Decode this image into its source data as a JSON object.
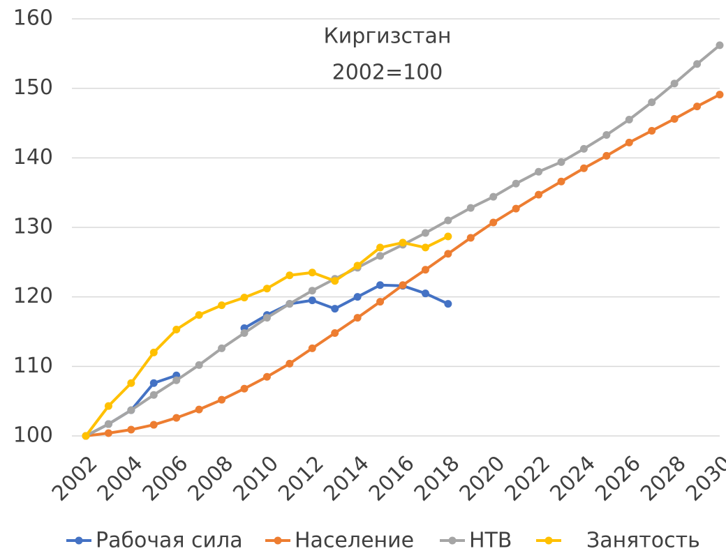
{
  "chart_data": {
    "type": "line",
    "title": "Киргизстан",
    "subtitle": "2002=100",
    "x": [
      2002,
      2003,
      2004,
      2005,
      2006,
      2007,
      2008,
      2009,
      2010,
      2011,
      2012,
      2013,
      2014,
      2015,
      2016,
      2017,
      2018,
      2019,
      2020,
      2021,
      2022,
      2023,
      2024,
      2025,
      2026,
      2027,
      2028,
      2029,
      2030
    ],
    "xlim": [
      2002,
      2030
    ],
    "xticks": [
      2002,
      2004,
      2006,
      2008,
      2010,
      2012,
      2014,
      2016,
      2018,
      2020,
      2022,
      2024,
      2026,
      2028,
      2030
    ],
    "ylim": [
      100,
      160
    ],
    "yticks": [
      100,
      110,
      120,
      130,
      140,
      150,
      160
    ],
    "grid": true,
    "legend": "bottom",
    "series": [
      {
        "name": "Рабочая сила",
        "color": "#4472c4",
        "values": [
          100,
          101.7,
          103.7,
          107.6,
          108.7,
          null,
          null,
          115.5,
          117.4,
          119,
          119.5,
          118.3,
          120,
          121.7,
          121.6,
          120.5,
          119,
          null,
          null,
          null,
          null,
          null,
          null,
          null,
          null,
          null,
          null,
          null,
          null
        ]
      },
      {
        "name": "Население",
        "color": "#ed7d31",
        "values": [
          100,
          100.4,
          100.9,
          101.6,
          102.6,
          103.8,
          105.2,
          106.8,
          108.5,
          110.4,
          112.6,
          114.8,
          117,
          119.3,
          121.7,
          123.9,
          126.2,
          128.5,
          130.7,
          132.7,
          134.7,
          136.6,
          138.5,
          140.3,
          142.2,
          143.9,
          145.6,
          147.4,
          149.1
        ]
      },
      {
        "name": "НТВ",
        "color": "#a5a5a5",
        "values": [
          100,
          101.7,
          103.7,
          105.9,
          108,
          110.2,
          112.6,
          114.8,
          117,
          119,
          120.9,
          122.6,
          124.2,
          125.9,
          127.5,
          129.2,
          131,
          132.8,
          134.4,
          136.3,
          138,
          139.4,
          141.3,
          143.3,
          145.5,
          148,
          150.7,
          153.5,
          156.2
        ]
      },
      {
        "name": "Занятость",
        "color": "#ffc000",
        "values": [
          100,
          104.3,
          107.6,
          112,
          115.3,
          117.4,
          118.8,
          119.9,
          121.2,
          123.1,
          123.5,
          122.3,
          124.5,
          127.1,
          127.8,
          127.1,
          128.7,
          null,
          null,
          null,
          null,
          null,
          null,
          null,
          null,
          null,
          null,
          null,
          null
        ]
      }
    ]
  }
}
